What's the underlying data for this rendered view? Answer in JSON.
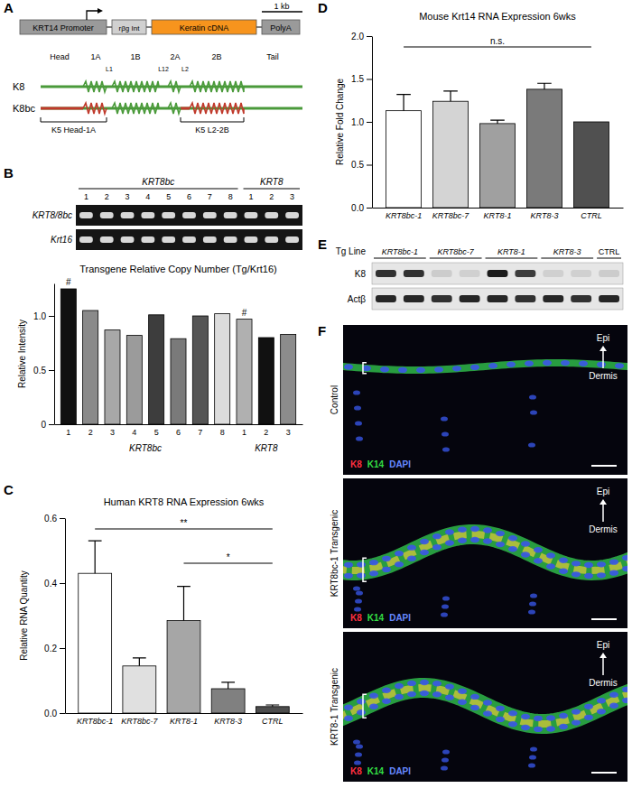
{
  "figure": {
    "panels": [
      "A",
      "B",
      "C",
      "D",
      "E",
      "F"
    ],
    "construct": {
      "segments": [
        "KRT14 Promoter",
        "rβg Int",
        "Keratin cDNA",
        "PolyA"
      ],
      "scale_bar": "1 kb"
    },
    "domains": {
      "regions": [
        "Head",
        "1A",
        "1B",
        "2A",
        "2B",
        "Tail"
      ],
      "linkers": [
        "L1",
        "L12",
        "L2"
      ],
      "rows": [
        "K8",
        "K8bc"
      ],
      "swaps": [
        "K5 Head-1A",
        "K5 L2-2B"
      ]
    },
    "gel": {
      "groups": [
        {
          "name": "KRT8bc",
          "lanes": [
            "1",
            "2",
            "3",
            "4",
            "5",
            "6",
            "7",
            "8"
          ]
        },
        {
          "name": "KRT8",
          "lanes": [
            "1",
            "2",
            "3"
          ]
        }
      ],
      "rows": [
        "KRT8/8bc",
        "Krt16"
      ]
    },
    "blot": {
      "header": "Tg Line",
      "lines": [
        {
          "name": "KRT8bc-1",
          "lanes": 2
        },
        {
          "name": "KRT8bc-7",
          "lanes": 2
        },
        {
          "name": "KRT8-1",
          "lanes": 2
        },
        {
          "name": "KRT8-3",
          "lanes": 2
        },
        {
          "name": "CTRL",
          "lanes": 1
        }
      ],
      "rows": [
        {
          "name": "K8",
          "intensity": [
            0.85,
            0.85,
            0.12,
            0.1,
            0.95,
            0.8,
            0.1,
            0.1,
            0.12
          ]
        },
        {
          "name": "Actβ",
          "intensity": [
            0.9,
            0.9,
            0.85,
            0.9,
            0.9,
            0.85,
            0.9,
            0.85,
            0.9
          ]
        }
      ]
    },
    "micrographs": {
      "panels": [
        "Control",
        "KRT8bc-1 Transgenic",
        "KRT8-1 Transgenic"
      ],
      "channels": [
        {
          "name": "K8",
          "color": "#ff3040"
        },
        {
          "name": "K14",
          "color": "#33dd44"
        },
        {
          "name": "DAPI",
          "color": "#6688ff"
        }
      ],
      "layers": [
        "Epi",
        "Dermis"
      ]
    }
  },
  "chart_data": [
    {
      "type": "bar",
      "title": "Transgene Relative Copy Number (Tg/Krt16)",
      "y_label": "Relative Intensity",
      "categories": [
        "1",
        "2",
        "3",
        "4",
        "5",
        "6",
        "7",
        "8",
        "1",
        "2",
        "3"
      ],
      "values": [
        1.25,
        1.05,
        0.87,
        0.82,
        1.01,
        0.79,
        1.0,
        1.02,
        0.97,
        0.8,
        0.83
      ],
      "colors": [
        "#111111",
        "#8a8a8a",
        "#a8a8a8",
        "#9b9b9b",
        "#3d3d3d",
        "#7a7a7a",
        "#555555",
        "#dcdcdc",
        "#b0b0b0",
        "#111111",
        "#8c8c8c"
      ],
      "ylim": [
        0,
        1.3
      ],
      "yticks": [
        0,
        0.5,
        {
          "value": 1,
          "label": "1.0"
        }
      ],
      "groups": [
        {
          "name": "KRT8bc",
          "count": 8
        },
        {
          "name": "KRT8",
          "count": 3
        }
      ],
      "annotations": [
        {
          "text": "#",
          "index": 0
        },
        {
          "text": "#",
          "index": 8
        }
      ]
    },
    {
      "type": "bar",
      "title": "Human KRT8 RNA Expression 6wks",
      "y_label": "Relative RNA Quantity",
      "categories": [
        "KRT8bc-1",
        "KRT8bc-7",
        "KRT8-1",
        "KRT8-3",
        "CTRL"
      ],
      "values": [
        0.43,
        0.145,
        0.285,
        0.075,
        0.02
      ],
      "errors": [
        0.1,
        0.025,
        0.105,
        0.02,
        0.005
      ],
      "colors": [
        "#ffffff",
        "#e0e0e0",
        "#a6a6a6",
        "#808080",
        "#4d4d4d"
      ],
      "ylim": [
        0,
        0.6
      ],
      "yticks": [
        {
          "value": 0,
          "label": "0.0"
        },
        0.2,
        0.4,
        0.6
      ],
      "significance": [
        {
          "from": 0,
          "to": 4,
          "label": "**"
        },
        {
          "from": 2,
          "to": 4,
          "label": "*"
        }
      ]
    },
    {
      "type": "bar",
      "title": "Mouse Krt14 RNA Expression 6wks",
      "y_label": "Relative Fold Change",
      "categories": [
        "KRT8bc-1",
        "KRT8bc-7",
        "KRT8-1",
        "KRT8-3",
        "CTRL"
      ],
      "values": [
        1.13,
        1.24,
        0.98,
        1.38,
        1.0
      ],
      "errors": [
        0.19,
        0.12,
        0.04,
        0.07,
        null
      ],
      "colors": [
        "#ffffff",
        "#d4d4d4",
        "#a0a0a0",
        "#7a7a7a",
        "#505050"
      ],
      "ylim": [
        0,
        2
      ],
      "yticks": [
        {
          "value": 0,
          "label": "0.0"
        },
        0.5,
        {
          "value": 1,
          "label": "1.0"
        },
        1.5,
        {
          "value": 2,
          "label": "2.0"
        }
      ],
      "significance": [
        {
          "from": 0,
          "to": 4,
          "label": "n.s."
        }
      ]
    }
  ]
}
